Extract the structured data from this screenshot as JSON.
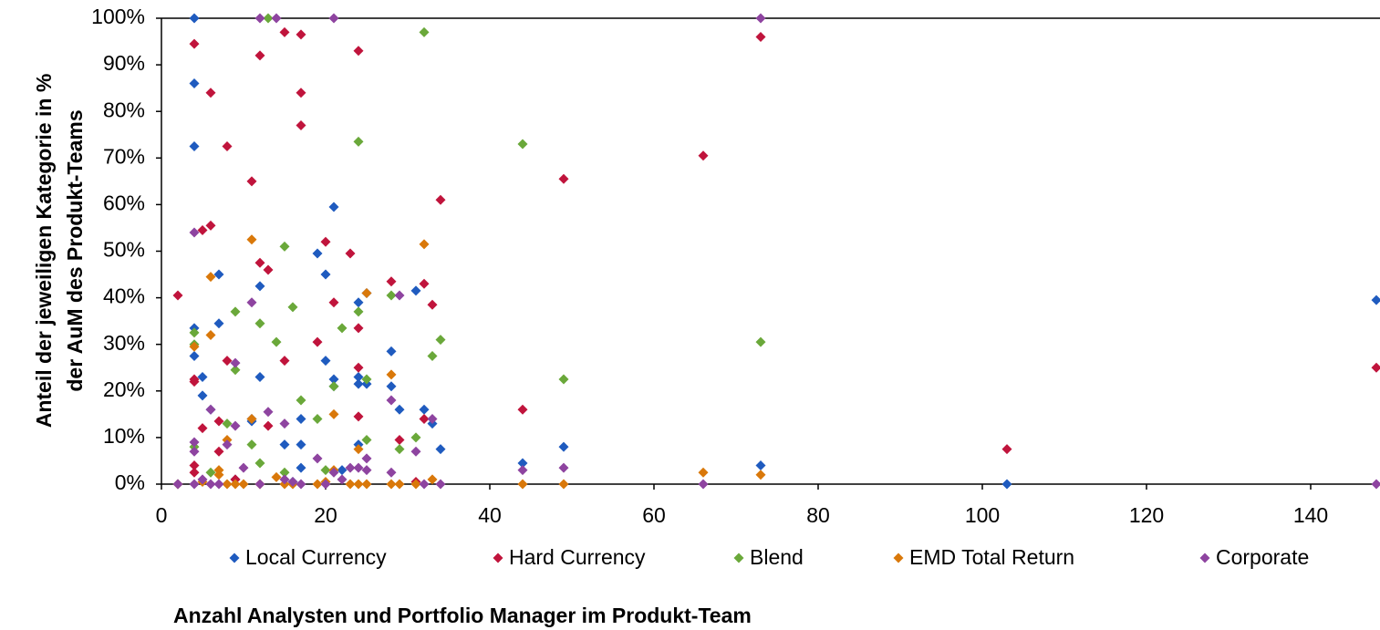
{
  "chart_data": {
    "type": "scatter",
    "x_label": "Anzahl Analysten und Portfolio Manager im Produkt-Team",
    "y_label": [
      "Anteil der jeweiligen Kategorie in %",
      "der AuM des Produkt-Teams"
    ],
    "xlim": [
      0,
      148
    ],
    "xticks": [
      0,
      20,
      40,
      60,
      80,
      100,
      120,
      140
    ],
    "ylim": [
      0,
      100
    ],
    "yticks": [
      {
        "value": 0,
        "label": "0%"
      },
      {
        "value": 10,
        "label": "10%"
      },
      {
        "value": 20,
        "label": "20%"
      },
      {
        "value": 30,
        "label": "30%"
      },
      {
        "value": 40,
        "label": "40%"
      },
      {
        "value": 50,
        "label": "50%"
      },
      {
        "value": 60,
        "label": "60%"
      },
      {
        "value": 70,
        "label": "70%"
      },
      {
        "value": 80,
        "label": "80%"
      },
      {
        "value": 90,
        "label": "90%"
      },
      {
        "value": 100,
        "label": "100%"
      }
    ],
    "legend": "bottom",
    "series": [
      {
        "name": "Local Currency",
        "color": "#1f5bbf",
        "x": [
          4,
          4,
          4,
          4,
          4,
          5,
          5,
          6,
          7,
          7,
          11,
          11,
          12,
          12,
          15,
          17,
          17,
          17,
          19,
          20,
          20,
          21,
          21,
          21,
          22,
          24,
          24,
          24,
          24,
          25,
          25,
          28,
          28,
          29,
          31,
          32,
          33,
          34,
          44,
          49,
          73,
          103,
          148,
          2,
          9,
          16
        ],
        "values": [
          100,
          86,
          72.5,
          33.5,
          27.5,
          23,
          19,
          16,
          45,
          34.5,
          14,
          13.5,
          42.5,
          23,
          8.5,
          14,
          8.5,
          3.5,
          49.5,
          45,
          26.5,
          59.5,
          22.5,
          21,
          3,
          39,
          21.5,
          23,
          8.5,
          41,
          21.5,
          28.5,
          21,
          16,
          41.5,
          16,
          13,
          7.5,
          4.5,
          8,
          4,
          0,
          39.5,
          0,
          1,
          0.5
        ]
      },
      {
        "name": "Hard Currency",
        "color": "#c0143c",
        "x": [
          2,
          4,
          4,
          4,
          4,
          4,
          5,
          5,
          6,
          6,
          7,
          7,
          8,
          8,
          9,
          11,
          12,
          12,
          13,
          13,
          15,
          15,
          17,
          17,
          17,
          19,
          20,
          21,
          23,
          24,
          24,
          24,
          24,
          28,
          29,
          32,
          32,
          33,
          34,
          44,
          49,
          66,
          73,
          103,
          148,
          31
        ],
        "values": [
          40.5,
          94.5,
          22.5,
          22,
          4,
          2.5,
          54.5,
          12,
          55.5,
          84,
          13.5,
          7,
          72.5,
          26.5,
          1,
          65,
          92,
          47.5,
          46,
          12.5,
          97,
          26.5,
          96.5,
          84,
          77,
          30.5,
          52,
          39,
          49.5,
          93,
          33.5,
          25,
          14.5,
          43.5,
          9.5,
          43,
          14,
          38.5,
          61,
          16,
          65.5,
          70.5,
          96,
          7.5,
          25,
          0.5
        ]
      },
      {
        "name": "Blend",
        "color": "#6aa83a",
        "x": [
          4,
          4,
          4,
          6,
          8,
          9,
          9,
          11,
          12,
          12,
          14,
          15,
          15,
          16,
          17,
          19,
          21,
          22,
          24,
          24,
          25,
          25,
          28,
          29,
          31,
          32,
          33,
          34,
          44,
          49,
          73,
          13,
          20
        ],
        "values": [
          32.5,
          30,
          8,
          2.5,
          13,
          37,
          24.5,
          8.5,
          34.5,
          4.5,
          30.5,
          51,
          2.5,
          38,
          18,
          14,
          21,
          33.5,
          73.5,
          37,
          22.5,
          9.5,
          40.5,
          7.5,
          10,
          97,
          27.5,
          31,
          73,
          22.5,
          30.5,
          100,
          3
        ]
      },
      {
        "name": "EMD Total Return",
        "color": "#d9780a",
        "x": [
          2,
          4,
          5,
          6,
          6,
          7,
          7,
          8,
          8,
          9,
          10,
          11,
          11,
          12,
          14,
          15,
          16,
          19,
          20,
          21,
          21,
          24,
          24,
          25,
          25,
          28,
          28,
          29,
          31,
          32,
          33,
          44,
          49,
          66,
          73,
          23
        ],
        "values": [
          0,
          29.5,
          0.5,
          44.5,
          32,
          3,
          2,
          9.5,
          0,
          0,
          0,
          52.5,
          14,
          0,
          1.5,
          0,
          0,
          0,
          0.5,
          15,
          3,
          7.5,
          0,
          41,
          0,
          23.5,
          0,
          0,
          0,
          51.5,
          1,
          0,
          0,
          2.5,
          2,
          0
        ]
      },
      {
        "name": "Corporate",
        "color": "#8e44a0",
        "x": [
          2,
          4,
          4,
          4,
          4,
          5,
          6,
          6,
          7,
          8,
          9,
          9,
          10,
          11,
          12,
          12,
          13,
          14,
          15,
          15,
          16,
          17,
          19,
          20,
          21,
          21,
          22,
          23,
          24,
          25,
          25,
          28,
          28,
          29,
          31,
          32,
          33,
          34,
          44,
          49,
          66,
          73,
          148
        ],
        "values": [
          0,
          54,
          9,
          7,
          0,
          1,
          16,
          0,
          0,
          8.5,
          26,
          12.5,
          3.5,
          39,
          100,
          0,
          15.5,
          100,
          13,
          1,
          0.5,
          0,
          5.5,
          0,
          100,
          2.5,
          1,
          3.5,
          3.5,
          5.5,
          3,
          18,
          2.5,
          40.5,
          7,
          0,
          14,
          0,
          3,
          3.5,
          0,
          100,
          0
        ]
      }
    ]
  }
}
